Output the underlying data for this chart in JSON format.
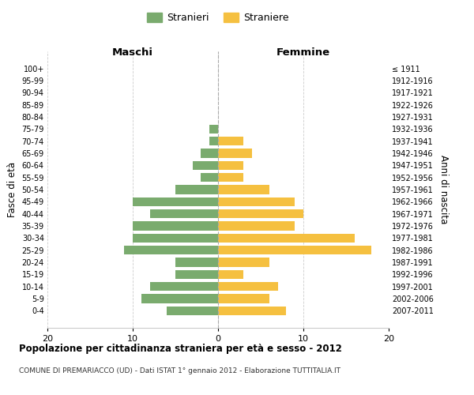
{
  "age_groups": [
    "100+",
    "95-99",
    "90-94",
    "85-89",
    "80-84",
    "75-79",
    "70-74",
    "65-69",
    "60-64",
    "55-59",
    "50-54",
    "45-49",
    "40-44",
    "35-39",
    "30-34",
    "25-29",
    "20-24",
    "15-19",
    "10-14",
    "5-9",
    "0-4"
  ],
  "birth_years": [
    "≤ 1911",
    "1912-1916",
    "1917-1921",
    "1922-1926",
    "1927-1931",
    "1932-1936",
    "1937-1941",
    "1942-1946",
    "1947-1951",
    "1952-1956",
    "1957-1961",
    "1962-1966",
    "1967-1971",
    "1972-1976",
    "1977-1981",
    "1982-1986",
    "1987-1991",
    "1992-1996",
    "1997-2001",
    "2002-2006",
    "2007-2011"
  ],
  "maschi": [
    0,
    0,
    0,
    0,
    0,
    1,
    1,
    2,
    3,
    2,
    5,
    10,
    8,
    10,
    10,
    11,
    5,
    5,
    8,
    9,
    6
  ],
  "femmine": [
    0,
    0,
    0,
    0,
    0,
    0,
    3,
    4,
    3,
    3,
    6,
    9,
    10,
    9,
    16,
    18,
    6,
    3,
    7,
    6,
    8
  ],
  "color_maschi": "#7aab6e",
  "color_femmine": "#f5c040",
  "title": "Popolazione per cittadinanza straniera per età e sesso - 2012",
  "subtitle": "COMUNE DI PREMARIACCO (UD) - Dati ISTAT 1° gennaio 2012 - Elaborazione TUTTITALIA.IT",
  "legend_stranieri": "Stranieri",
  "legend_straniere": "Straniere",
  "xlabel_left": "Maschi",
  "xlabel_right": "Femmine",
  "ylabel_left": "Fasce di età",
  "ylabel_right": "Anni di nascita",
  "xlim": 20,
  "background_color": "#ffffff",
  "grid_color": "#cccccc"
}
